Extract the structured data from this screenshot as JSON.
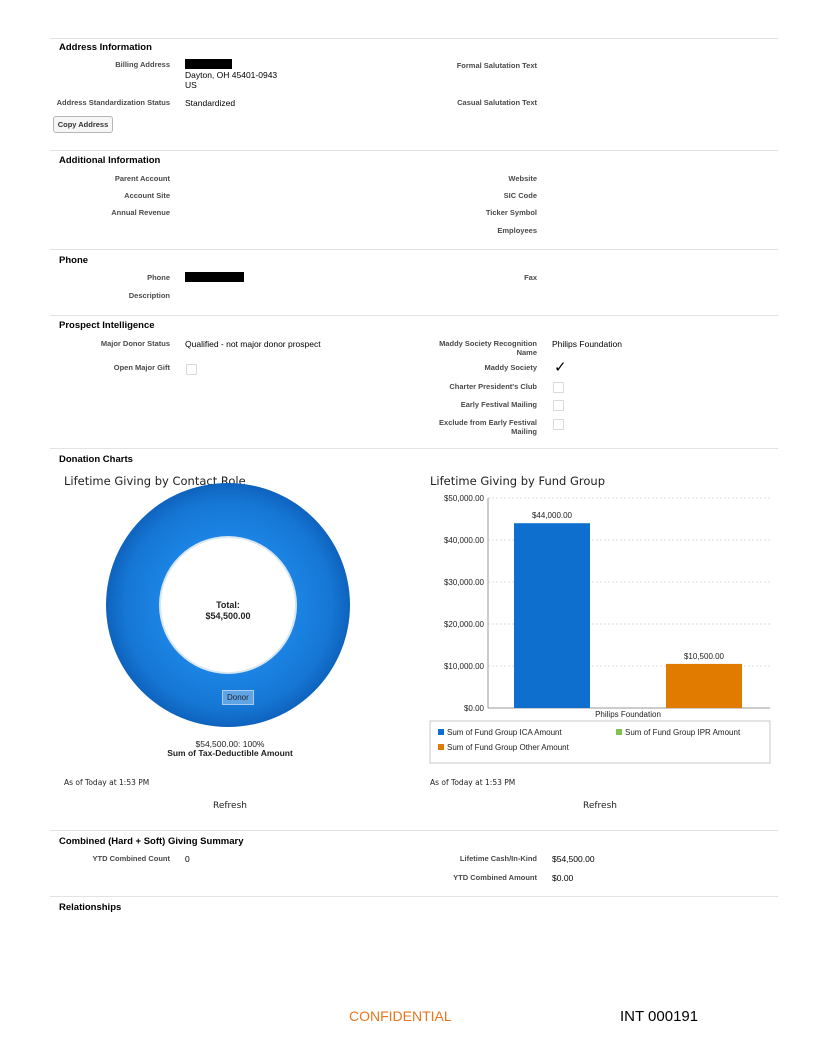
{
  "address": {
    "title": "Address Information",
    "billing_label": "Billing Address",
    "billing_line2": "Dayton, OH 45401-0943",
    "billing_line3": "US",
    "formal_label": "Formal Salutation Text",
    "std_label": "Address Standardization Status",
    "std_value": "Standardized",
    "casual_label": "Casual Salutation Text",
    "copy_button": "Copy Address"
  },
  "additional": {
    "title": "Additional Information",
    "parent_label": "Parent Account",
    "site_label": "Account Site",
    "revenue_label": "Annual Revenue",
    "website_label": "Website",
    "sic_label": "SIC Code",
    "ticker_label": "Ticker Symbol",
    "employees_label": "Employees"
  },
  "phone": {
    "title": "Phone",
    "phone_label": "Phone",
    "description_label": "Description",
    "fax_label": "Fax"
  },
  "prospect": {
    "title": "Prospect Intelligence",
    "major_label": "Major Donor Status",
    "major_value": "Qualified - not major donor prospect",
    "open_gift_label": "Open Major Gift",
    "maddy_recog_label_1": "Maddy Society Recognition",
    "maddy_recog_label_2": "Name",
    "maddy_recog_value": "Philips Foundation",
    "maddy_society_label": "Maddy Society",
    "charter_label": "Charter President's Club",
    "early_label": "Early Festival Mailing",
    "exclude_label_1": "Exclude from Early Festival",
    "exclude_label_2": "Mailing",
    "open_gift_checked": false,
    "maddy_society_checked": true,
    "charter_checked": false,
    "early_checked": false,
    "exclude_checked": false
  },
  "donation": {
    "title": "Donation Charts",
    "left_title": "Lifetime Giving by Contact Role",
    "total_label": "Total:",
    "total_value": "$54,500.00",
    "donor_label": "Donor",
    "slice_caption": "$54,500.00: 100%",
    "measure_caption": "Sum of Tax-Deductible Amount",
    "right_title": "Lifetime Giving by Fund Group",
    "asof_left": "As of Today at 1:53 PM",
    "asof_right": "As of Today at 1:53 PM",
    "refresh_left": "Refresh",
    "refresh_right": "Refresh"
  },
  "chart_data": [
    {
      "type": "pie",
      "title": "Lifetime Giving by Contact Role",
      "categories": [
        "Donor"
      ],
      "values": [
        54500
      ],
      "colors": [
        "#1a78d6"
      ]
    },
    {
      "type": "bar",
      "title": "Lifetime Giving by Fund Group",
      "categories": [
        "Philips Foundation"
      ],
      "ylim": [
        0,
        50000
      ],
      "yticks": [
        "$0.00",
        "$10,000.00",
        "$20,000.00",
        "$30,000.00",
        "$40,000.00",
        "$50,000.00"
      ],
      "series": [
        {
          "name": "Sum of Fund Group ICA Amount",
          "values": [
            44000
          ],
          "label": "$44,000.00",
          "color": "#0f6fce"
        },
        {
          "name": "Sum of Fund Group IPR Amount",
          "values": [
            0
          ],
          "label": "",
          "color": "#7dc44c"
        },
        {
          "name": "Sum of Fund Group Other Amount",
          "values": [
            10500
          ],
          "label": "$10,500.00",
          "color": "#e07b00"
        }
      ]
    }
  ],
  "combined": {
    "title": "Combined (Hard + Soft) Giving Summary",
    "ytd_count_label": "YTD Combined Count",
    "ytd_count_value": "0",
    "lifetime_label": "Lifetime Cash/In-Kind",
    "lifetime_value": "$54,500.00",
    "ytd_amount_label": "YTD Combined Amount",
    "ytd_amount_value": "$0.00"
  },
  "relationships": {
    "title": "Relationships"
  },
  "footer": {
    "confidential": "CONFIDENTIAL",
    "bates": "INT 000191",
    "confidential_color": "#e8761e"
  }
}
